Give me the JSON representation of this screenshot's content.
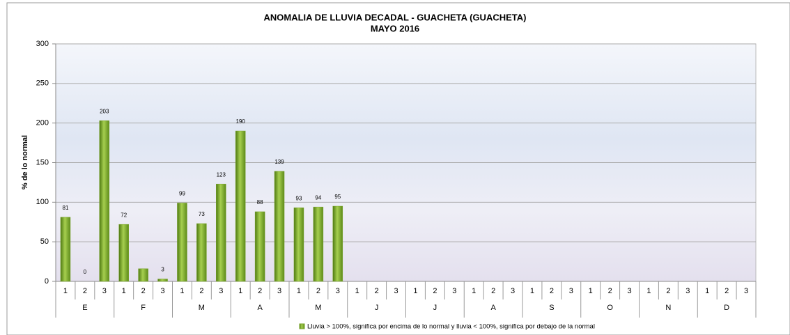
{
  "chart_data": {
    "type": "bar",
    "title": "ANOMALIA DE LLUVIA DECADAL - GUACHETA  (GUACHETA)",
    "subtitle": "MAYO 2016",
    "y_label": "% de lo normal",
    "categories": [
      "1",
      "2",
      "3",
      "1",
      "2",
      "3",
      "1",
      "2",
      "3",
      "1",
      "2",
      "3",
      "1",
      "2",
      "3",
      "1",
      "2",
      "3",
      "1",
      "2",
      "3",
      "1",
      "2",
      "3",
      "1",
      "2",
      "3",
      "1",
      "2",
      "3",
      "1",
      "2",
      "3",
      "1",
      "2",
      "3"
    ],
    "groups": [
      "E",
      "F",
      "M",
      "A",
      "M",
      "J",
      "J",
      "A",
      "S",
      "O",
      "N",
      "D"
    ],
    "series": [
      {
        "name": "Lluvia > 100%, significa por encima de lo normal y lluvia < 100%, significa por debajo de la normal",
        "color": "#7aa52a",
        "values": [
          81,
          0,
          203,
          72,
          16,
          3,
          99,
          73,
          123,
          190,
          88,
          139,
          93,
          94,
          95,
          null,
          null,
          null,
          null,
          null,
          null,
          null,
          null,
          null,
          null,
          null,
          null,
          null,
          null,
          null,
          null,
          null,
          null,
          null,
          null,
          null
        ],
        "value_labels": [
          "81",
          "0",
          "203",
          "72",
          null,
          "3",
          "99",
          "73",
          "123",
          "190",
          "88",
          "139",
          "93",
          "94",
          "95",
          null,
          null,
          null,
          null,
          null,
          null,
          null,
          null,
          null,
          null,
          null,
          null,
          null,
          null,
          null,
          null,
          null,
          null,
          null,
          null,
          null
        ]
      }
    ],
    "ylim": [
      0,
      300
    ],
    "yticks": [
      0,
      50,
      100,
      150,
      200,
      250,
      300
    ],
    "grid": true
  }
}
